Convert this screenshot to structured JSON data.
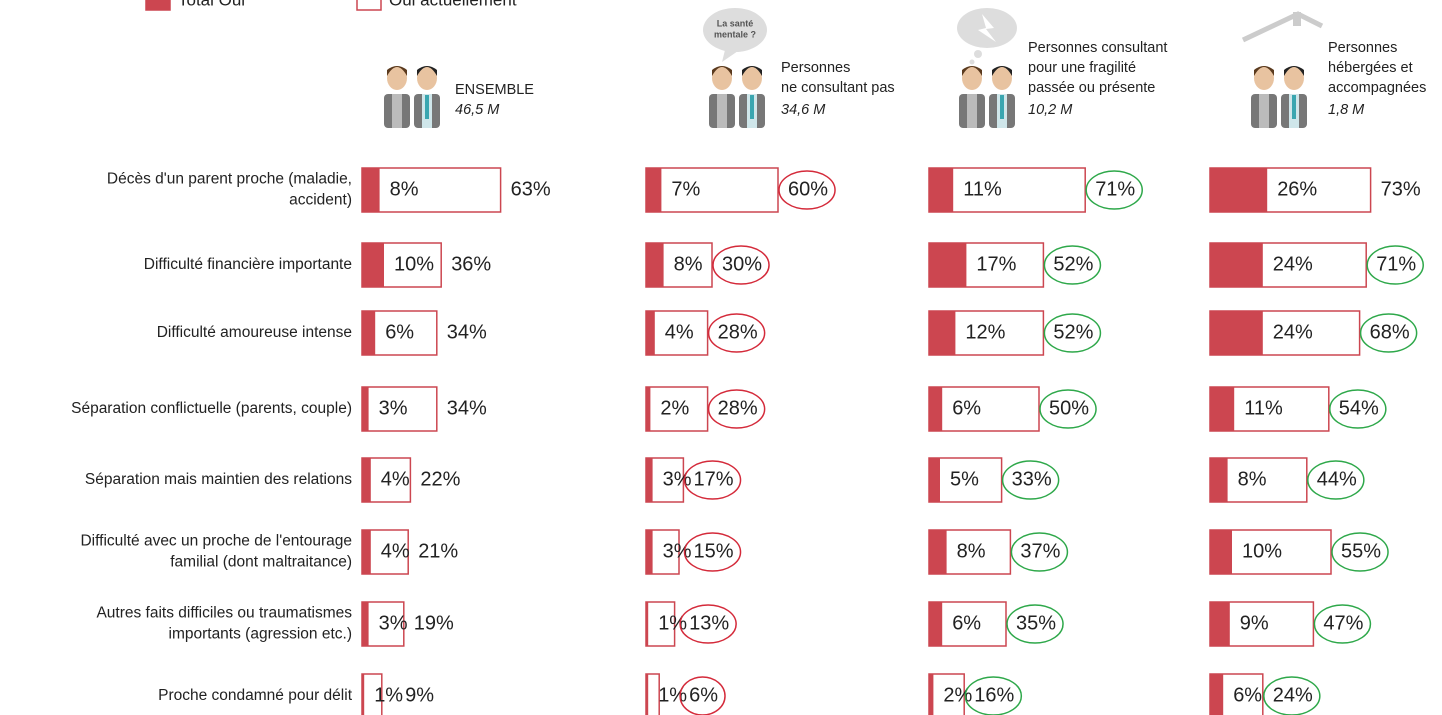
{
  "chart_data": {
    "type": "paired-bar",
    "legend": [
      {
        "name": "Total Oui",
        "color": "#cc4650",
        "style": "filled"
      },
      {
        "name": "Oui actuellement",
        "color": "#cc4650",
        "style": "outline"
      }
    ],
    "categories": [
      [
        "Décès d'un parent proche (maladie,",
        "accident)"
      ],
      [
        "Difficulté financière importante"
      ],
      [
        "Difficulté amoureuse intense"
      ],
      [
        "Séparation conflictuelle (parents, couple)"
      ],
      [
        "Séparation mais maintien des relations"
      ],
      [
        "Difficulté avec un proche de l'entourage",
        "familial (dont maltraitance)"
      ],
      [
        "Autres faits difficiles ou traumatismes",
        "importants (agression etc.)"
      ],
      [
        "Proche condamné pour délit"
      ]
    ],
    "groups": [
      {
        "label": [
          "ENSEMBLE"
        ],
        "size": "46,5 M",
        "circle_color": null,
        "current": {
          "values": [
            8,
            10,
            6,
            3,
            4,
            4,
            3,
            1
          ],
          "value_labels": [
            "8%",
            "10%",
            "6%",
            "3%",
            "4%",
            "4%",
            "3%",
            "1%"
          ]
        },
        "total": {
          "values": [
            63,
            36,
            34,
            34,
            22,
            21,
            19,
            9
          ],
          "value_labels": [
            "63%",
            "36%",
            "34%",
            "34%",
            "22%",
            "21%",
            "19%",
            "9%"
          ]
        },
        "circled": [
          false,
          false,
          false,
          false,
          false,
          false,
          false,
          false
        ]
      },
      {
        "label": [
          "Personnes",
          "ne consultant pas"
        ],
        "size": "34,6 M",
        "bubble": [
          "La santé",
          "mentale ?"
        ],
        "circle_color": "#d42a3a",
        "current": {
          "values": [
            7,
            8,
            4,
            2,
            3,
            3,
            1,
            1
          ],
          "value_labels": [
            "7%",
            "8%",
            "4%",
            "2%",
            "3%",
            "3%",
            "1%",
            "1%"
          ]
        },
        "total": {
          "values": [
            60,
            30,
            28,
            28,
            17,
            15,
            13,
            6
          ],
          "value_labels": [
            "60%",
            "30%",
            "28%",
            "28%",
            "17%",
            "15%",
            "13%",
            "6%"
          ]
        },
        "circled": [
          true,
          true,
          true,
          true,
          true,
          true,
          true,
          true
        ]
      },
      {
        "label": [
          "Personnes consultant",
          "pour une fragilité",
          "passée ou présente"
        ],
        "size": "10,2 M",
        "circle_color": "#2ea84a",
        "current": {
          "values": [
            11,
            17,
            12,
            6,
            5,
            8,
            6,
            2
          ],
          "value_labels": [
            "11%",
            "17%",
            "12%",
            "6%",
            "5%",
            "8%",
            "6%",
            "2%"
          ]
        },
        "total": {
          "values": [
            71,
            52,
            52,
            50,
            33,
            37,
            35,
            16
          ],
          "value_labels": [
            "71%",
            "52%",
            "52%",
            "50%",
            "33%",
            "37%",
            "35%",
            "16%"
          ]
        },
        "circled": [
          true,
          true,
          true,
          true,
          true,
          true,
          true,
          true
        ]
      },
      {
        "label": [
          "Personnes",
          "hébergées et",
          "accompagnées"
        ],
        "size": "1,8 M",
        "circle_color": "#2ea84a",
        "current": {
          "values": [
            26,
            24,
            24,
            11,
            8,
            10,
            9,
            6
          ],
          "value_labels": [
            "26%",
            "24%",
            "24%",
            "11%",
            "8%",
            "10%",
            "9%",
            "6%"
          ]
        },
        "total": {
          "values": [
            73,
            71,
            68,
            54,
            44,
            55,
            47,
            24
          ],
          "value_labels": [
            "73%",
            "71%",
            "68%",
            "54%",
            "44%",
            "55%",
            "47%",
            "24%"
          ]
        },
        "circled": [
          false,
          true,
          true,
          true,
          true,
          true,
          true,
          true
        ]
      }
    ]
  }
}
